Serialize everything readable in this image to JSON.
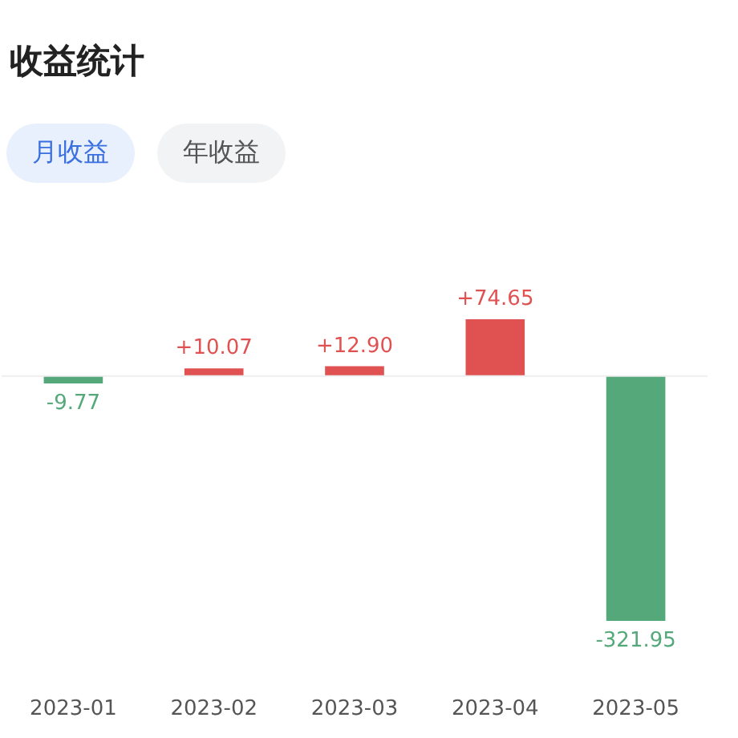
{
  "chart_data": {
    "type": "bar",
    "title": "收益统计",
    "annotations": [
      "月收益",
      "年收益"
    ],
    "categories": [
      "2023-01",
      "2023-02",
      "2023-03",
      "2023-04",
      "2023-05"
    ],
    "values": [
      -9.77,
      10.07,
      12.9,
      74.65,
      -321.95
    ],
    "colors": [
      "#54a879",
      "#e05252",
      "#e05252",
      "#e05252",
      "#54a879"
    ],
    "value_labels": [
      "-9.77",
      "+10.07",
      "+12.90",
      "+74.65",
      "-321.95"
    ],
    "ref_lines": [
      {
        "axis": "y",
        "value": 0,
        "color": "#eeeeee"
      }
    ],
    "grid": false
  }
}
